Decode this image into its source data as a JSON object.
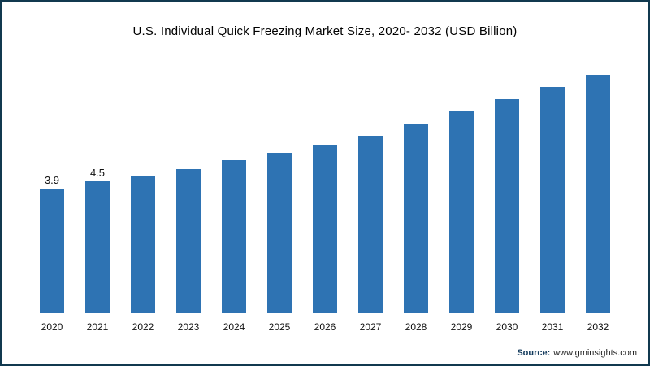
{
  "chart_data": {
    "type": "bar",
    "title": "U.S. Individual Quick Freezing Market Size, 2020- 2032 (USD Billion)",
    "categories": [
      "2020",
      "2021",
      "2022",
      "2023",
      "2024",
      "2025",
      "2026",
      "2027",
      "2028",
      "2029",
      "2030",
      "2031",
      "2032"
    ],
    "values": [
      3.9,
      4.5,
      4.9,
      5.5,
      6.2,
      6.8,
      7.5,
      8.2,
      9.2,
      10.2,
      11.2,
      12.2,
      13.2
    ],
    "bar_labels": [
      "3.9",
      "4.5",
      "",
      "",
      "",
      "",
      "",
      "",
      "",
      "",
      "",
      "",
      ""
    ],
    "bar_color": "#2e73b3",
    "xlabel": "",
    "ylabel": "",
    "legend": "none",
    "grid": "off",
    "note": "only 2020 and 2021 bars carry data labels; baseline is non-zero"
  },
  "footer": {
    "source_prefix": "Source:",
    "source_url": "www.gminsights.com"
  }
}
